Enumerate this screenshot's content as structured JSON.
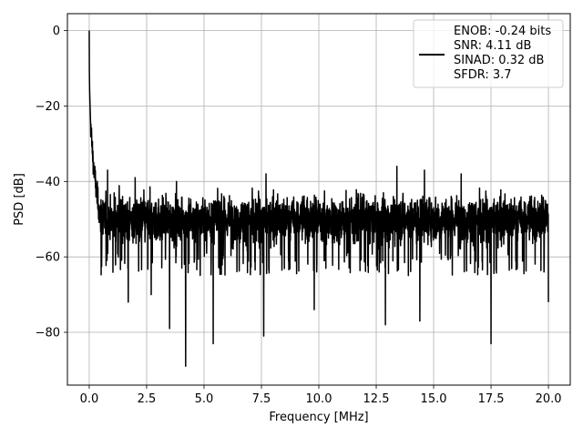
{
  "chart_data": {
    "type": "line",
    "title": "",
    "xlabel": "Frequency [MHz]",
    "ylabel": "PSD [dB]",
    "xlim": [
      -0.95,
      20.95
    ],
    "ylim": [
      -94,
      4.5
    ],
    "grid": true,
    "x_ticks": [
      0.0,
      2.5,
      5.0,
      7.5,
      10.0,
      12.5,
      15.0,
      17.5,
      20.0
    ],
    "x_tick_labels": [
      "0.0",
      "2.5",
      "5.0",
      "7.5",
      "10.0",
      "12.5",
      "15.0",
      "17.5",
      "20.0"
    ],
    "y_ticks": [
      0,
      -20,
      -40,
      -60,
      -80
    ],
    "y_tick_labels": [
      "0",
      "−20",
      "−40",
      "−60",
      "−80"
    ],
    "legend_position": "top-right",
    "legend_lines": [
      "ENOB: -0.24 bits",
      "SNR: 4.11 dB",
      "SINAD: 0.32 dB",
      "SFDR: 3.7"
    ],
    "series": [
      {
        "color": "#000000",
        "x_range": [
          0,
          20
        ],
        "peak": 0,
        "noise_floor_mean": -50,
        "noise_band": [
          -57,
          -42
        ],
        "spikes_up": [
          [
            0.8,
            -37
          ],
          [
            2.0,
            -39
          ],
          [
            3.8,
            -40
          ],
          [
            7.7,
            -38
          ],
          [
            13.4,
            -36
          ],
          [
            14.6,
            -37
          ],
          [
            16.2,
            -38
          ]
        ],
        "spikes_down": [
          [
            1.7,
            -72
          ],
          [
            2.7,
            -70
          ],
          [
            3.5,
            -79
          ],
          [
            4.2,
            -89
          ],
          [
            5.4,
            -83
          ],
          [
            7.6,
            -81
          ],
          [
            9.8,
            -74
          ],
          [
            12.9,
            -78
          ],
          [
            14.4,
            -77
          ],
          [
            17.5,
            -83
          ],
          [
            20.0,
            -72
          ]
        ]
      }
    ]
  }
}
